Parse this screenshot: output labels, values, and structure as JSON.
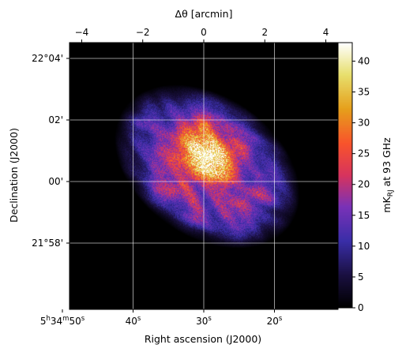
{
  "chart_data": {
    "type": "heatmap",
    "subject": "radio sky image",
    "colormap": "CMRmap",
    "grid": true,
    "top_axis": {
      "label": "Δθ [arcmin]",
      "range": [
        -4.4,
        4.4
      ],
      "ticks": [
        {
          "value": -4,
          "label": "−4"
        },
        {
          "value": -2,
          "label": "−2"
        },
        {
          "value": 0,
          "label": "0"
        },
        {
          "value": 2,
          "label": "2"
        },
        {
          "value": 4,
          "label": "4"
        }
      ]
    },
    "bottom_axis": {
      "label": "Right ascension (J2000)",
      "ticks": [
        {
          "seconds": 50,
          "label_parts": [
            "5",
            "h",
            "34",
            "m",
            "50",
            "s"
          ]
        },
        {
          "seconds": 40,
          "label_parts": [
            "40",
            "s"
          ]
        },
        {
          "seconds": 30,
          "label_parts": [
            "30",
            "s"
          ]
        },
        {
          "seconds": 20,
          "label_parts": [
            "20",
            "s"
          ]
        }
      ]
    },
    "left_axis": {
      "label": "Declination (J2000)",
      "ticks": [
        {
          "value_arcmin": 4,
          "label": "22°04'"
        },
        {
          "value_arcmin": 2,
          "label": "02'"
        },
        {
          "value_arcmin": 0,
          "label": "00'"
        },
        {
          "value_arcmin": -2,
          "label": "21°58'"
        }
      ]
    },
    "colorbar": {
      "label_main": "mK",
      "label_sub": "RJ",
      "label_rest": " at 93 GHz",
      "range": [
        0,
        43
      ],
      "ticks": [
        {
          "value": 0,
          "label": "0"
        },
        {
          "value": 5,
          "label": "5"
        },
        {
          "value": 10,
          "label": "10"
        },
        {
          "value": 15,
          "label": "15"
        },
        {
          "value": 20,
          "label": "20"
        },
        {
          "value": 25,
          "label": "25"
        },
        {
          "value": 30,
          "label": "30"
        },
        {
          "value": 35,
          "label": "35"
        },
        {
          "value": 40,
          "label": "40"
        }
      ],
      "stops": [
        {
          "v": 0.0,
          "color": "#000000"
        },
        {
          "v": 0.12,
          "color": "#1a1040"
        },
        {
          "v": 0.25,
          "color": "#3a2ea8"
        },
        {
          "v": 0.38,
          "color": "#7a32b8"
        },
        {
          "v": 0.5,
          "color": "#d8345e"
        },
        {
          "v": 0.62,
          "color": "#f9542c"
        },
        {
          "v": 0.75,
          "color": "#e6a01c"
        },
        {
          "v": 0.88,
          "color": "#e8e06e"
        },
        {
          "v": 1.0,
          "color": "#ffffff"
        }
      ]
    },
    "source_model": {
      "shape": "elliptical nebula, peak near center",
      "peak_value": 43,
      "center_dtheta_arcmin": 0.1,
      "center_dec_arcmin": 0.5,
      "major_axis_arcmin": 2.9,
      "minor_axis_arcmin": 2.0,
      "position_angle_deg": -35
    }
  }
}
